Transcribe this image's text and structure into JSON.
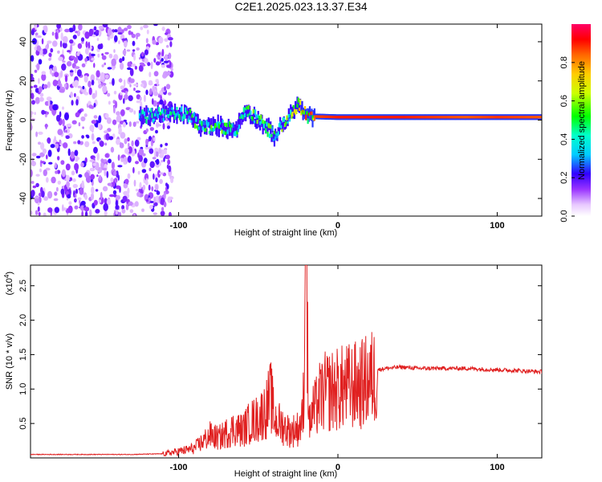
{
  "title": "C2E1.2025.023.13.37.E34",
  "chart_data": [
    {
      "type": "heatmap",
      "title": "C2E1.2025.023.13.37.E34",
      "xlabel": "Height of straight line (km)",
      "ylabel": "Frequency (Hz)",
      "xlim": [
        -193,
        128
      ],
      "ylim": [
        -49,
        49
      ],
      "xticks": [
        -100,
        0,
        100
      ],
      "xtick_labels": [
        "-100",
        "0",
        "100"
      ],
      "yticks": [
        -40,
        -20,
        0,
        20,
        40
      ],
      "ytick_labels": [
        "-40",
        "-20",
        "0",
        "20",
        "40"
      ],
      "colorbar": {
        "label": "Normalized spectral amplitude",
        "range": [
          0,
          1
        ],
        "ticks": [
          0.0,
          0.2,
          0.4,
          0.6,
          0.8
        ],
        "tick_labels": [
          "0.0",
          "0.2",
          "0.4",
          "0.6",
          "0.8"
        ],
        "colors": [
          "#ffffff",
          "#cc99ff",
          "#7a00ff",
          "#0000ff",
          "#00ffff",
          "#00ff00",
          "#ffff00",
          "#ff8000",
          "#ff0000",
          "#ff0066"
        ]
      },
      "description_of_features": {
        "noise_region_x": [
          -193,
          -110
        ],
        "noise_region_amplitude": 0.15,
        "ridge": [
          {
            "x": -125,
            "freq": 1.5,
            "amp": 0.4
          },
          {
            "x": -110,
            "freq": 3,
            "amp": 0.45
          },
          {
            "x": -95,
            "freq": 3,
            "amp": 0.5
          },
          {
            "x": -85,
            "freq": -4,
            "amp": 0.5
          },
          {
            "x": -75,
            "freq": -3,
            "amp": 0.55
          },
          {
            "x": -65,
            "freq": -5,
            "amp": 0.45
          },
          {
            "x": -58,
            "freq": 5,
            "amp": 0.5
          },
          {
            "x": -50,
            "freq": 0,
            "amp": 0.55
          },
          {
            "x": -40,
            "freq": -8,
            "amp": 0.5
          },
          {
            "x": -30,
            "freq": 3,
            "amp": 0.6
          },
          {
            "x": -25,
            "freq": 8,
            "amp": 0.7
          },
          {
            "x": -20,
            "freq": 2,
            "amp": 0.85
          },
          {
            "x": 0,
            "freq": 1.5,
            "amp": 0.9
          },
          {
            "x": 40,
            "freq": 1.5,
            "amp": 0.9
          },
          {
            "x": 80,
            "freq": 1.5,
            "amp": 0.85
          },
          {
            "x": 100,
            "freq": 1.5,
            "amp": 0.88
          },
          {
            "x": 128,
            "freq": 1.5,
            "amp": 0.85
          }
        ]
      }
    },
    {
      "type": "line",
      "xlabel": "Height of straight line (km)",
      "ylabel": "SNR (10 * v/v)",
      "y_multiplier_label": "(x10",
      "y_multiplier_exp": "4",
      "xlim": [
        -193,
        128
      ],
      "ylim": [
        0,
        2.8
      ],
      "xticks": [
        -100,
        0,
        100
      ],
      "xtick_labels": [
        "-100",
        "0",
        "100"
      ],
      "yticks": [
        0.5,
        1.0,
        1.5,
        2.0,
        2.5
      ],
      "ytick_labels": [
        "0.5",
        "1.0",
        "1.5",
        "2.0",
        "2.5"
      ],
      "line_color": "#e02020",
      "series": [
        {
          "x": [
            -193,
            -170,
            -150,
            -130,
            -110,
            -100,
            -95,
            -90,
            -85,
            -80,
            -75,
            -70,
            -65,
            -60,
            -55,
            -50,
            -45,
            -42,
            -40,
            -38,
            -35,
            -30,
            -25,
            -22,
            -20,
            -18,
            -16,
            -14,
            -12,
            -10,
            -8,
            -5,
            0,
            5,
            10,
            15,
            20,
            25,
            30,
            40,
            50,
            60,
            70,
            80,
            90,
            100,
            110,
            120,
            128
          ],
          "y": [
            0.05,
            0.05,
            0.05,
            0.05,
            0.06,
            0.1,
            0.12,
            0.15,
            0.25,
            0.35,
            0.3,
            0.38,
            0.45,
            0.42,
            0.55,
            0.6,
            0.75,
            0.95,
            0.6,
            0.55,
            0.5,
            0.4,
            0.45,
            0.6,
            2.8,
            0.5,
            0.7,
            0.75,
            0.9,
            0.95,
            1.0,
            1.02,
            1.05,
            1.08,
            1.1,
            1.12,
            1.2,
            1.28,
            1.3,
            1.32,
            1.3,
            1.3,
            1.3,
            1.3,
            1.29,
            1.28,
            1.27,
            1.26,
            1.25
          ]
        }
      ]
    }
  ]
}
